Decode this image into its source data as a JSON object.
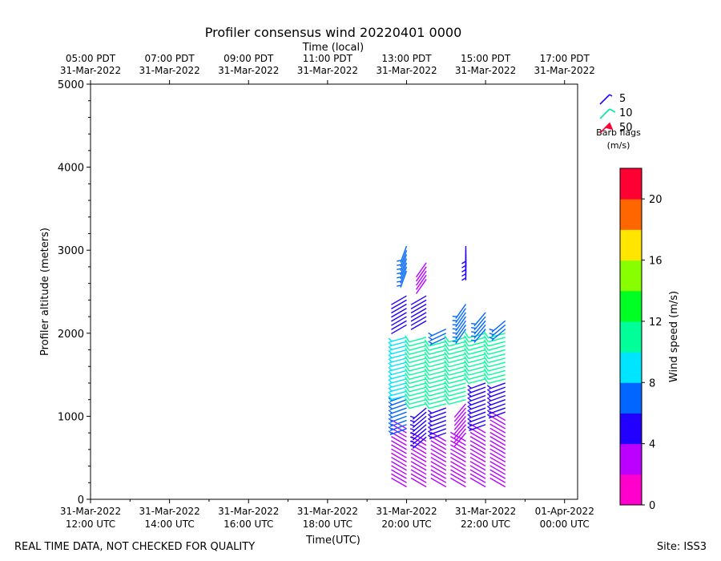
{
  "chart_data": {
    "type": "wind-barb",
    "title": "Profiler consensus wind 20220401 0000",
    "top_axis_label": "Time (local)",
    "xlabel": "Time(UTC)",
    "ylabel": "Profiler altitude (meters)",
    "xlim_hours_utc": [
      12.0,
      24.33
    ],
    "ylim": [
      0,
      5000
    ],
    "yticks": [
      "0",
      "1000",
      "2000",
      "3000",
      "4000",
      "5000"
    ],
    "bottom_ticks": [
      {
        "hour": 12,
        "date": "31-Mar-2022",
        "time": "12:00 UTC"
      },
      {
        "hour": 14,
        "date": "31-Mar-2022",
        "time": "14:00 UTC"
      },
      {
        "hour": 16,
        "date": "31-Mar-2022",
        "time": "16:00 UTC"
      },
      {
        "hour": 18,
        "date": "31-Mar-2022",
        "time": "18:00 UTC"
      },
      {
        "hour": 20,
        "date": "31-Mar-2022",
        "time": "20:00 UTC"
      },
      {
        "hour": 22,
        "date": "31-Mar-2022",
        "time": "22:00 UTC"
      },
      {
        "hour": 24,
        "date": "01-Apr-2022",
        "time": "00:00 UTC"
      }
    ],
    "top_ticks": [
      {
        "hour": 12,
        "time": "05:00 PDT",
        "date": "31-Mar-2022"
      },
      {
        "hour": 14,
        "time": "07:00 PDT",
        "date": "31-Mar-2022"
      },
      {
        "hour": 16,
        "time": "09:00 PDT",
        "date": "31-Mar-2022"
      },
      {
        "hour": 18,
        "time": "11:00 PDT",
        "date": "31-Mar-2022"
      },
      {
        "hour": 20,
        "time": "13:00 PDT",
        "date": "31-Mar-2022"
      },
      {
        "hour": 22,
        "time": "15:00 PDT",
        "date": "31-Mar-2022"
      },
      {
        "hour": 24,
        "time": "17:00 PDT",
        "date": "31-Mar-2022"
      }
    ],
    "barb_profiles": [
      {
        "hour": 20.0,
        "segments": [
          {
            "from": 150,
            "to": 850,
            "dir": 300,
            "speed": 3
          },
          {
            "from": 850,
            "to": 1250,
            "dir": 250,
            "speed": 6
          },
          {
            "from": 1250,
            "to": 1950,
            "dir": 255,
            "speed": 9
          },
          {
            "from": 2100,
            "to": 2450,
            "dir": 240,
            "speed": 4
          },
          {
            "from": 2750,
            "to": 3050,
            "dir": 200,
            "speed": 6
          }
        ]
      },
      {
        "hour": 20.5,
        "segments": [
          {
            "from": 150,
            "to": 700,
            "dir": 300,
            "speed": 2
          },
          {
            "from": 750,
            "to": 1100,
            "dir": 230,
            "speed": 5
          },
          {
            "from": 1150,
            "to": 1950,
            "dir": 255,
            "speed": 10
          },
          {
            "from": 2150,
            "to": 2450,
            "dir": 240,
            "speed": 4
          },
          {
            "from": 2650,
            "to": 2850,
            "dir": 215,
            "speed": 3
          }
        ]
      },
      {
        "hour": 21.0,
        "segments": [
          {
            "from": 150,
            "to": 700,
            "dir": 300,
            "speed": 2
          },
          {
            "from": 800,
            "to": 1100,
            "dir": 250,
            "speed": 5
          },
          {
            "from": 1150,
            "to": 1900,
            "dir": 255,
            "speed": 10
          },
          {
            "from": 1950,
            "to": 2050,
            "dir": 245,
            "speed": 7
          }
        ]
      },
      {
        "hour": 21.5,
        "segments": [
          {
            "from": 150,
            "to": 700,
            "dir": 300,
            "speed": 2
          },
          {
            "from": 800,
            "to": 1150,
            "dir": 220,
            "speed": 3
          },
          {
            "from": 1200,
            "to": 1950,
            "dir": 255,
            "speed": 11
          },
          {
            "from": 2050,
            "to": 2350,
            "dir": 215,
            "speed": 7
          },
          {
            "from": 2850,
            "to": 3050,
            "dir": 180,
            "speed": 5
          }
        ]
      },
      {
        "hour": 22.0,
        "segments": [
          {
            "from": 150,
            "to": 800,
            "dir": 300,
            "speed": 2
          },
          {
            "from": 900,
            "to": 1400,
            "dir": 250,
            "speed": 5
          },
          {
            "from": 1450,
            "to": 2000,
            "dir": 255,
            "speed": 11
          },
          {
            "from": 2050,
            "to": 2250,
            "dir": 220,
            "speed": 7
          }
        ]
      },
      {
        "hour": 22.5,
        "segments": [
          {
            "from": 150,
            "to": 950,
            "dir": 300,
            "speed": 2
          },
          {
            "from": 1050,
            "to": 1400,
            "dir": 250,
            "speed": 5
          },
          {
            "from": 1450,
            "to": 2000,
            "dir": 255,
            "speed": 10
          },
          {
            "from": 2050,
            "to": 2150,
            "dir": 230,
            "speed": 7
          }
        ]
      }
    ],
    "barb_legend": [
      {
        "speed": 5,
        "label": "5",
        "color": "#2200ff"
      },
      {
        "speed": 10,
        "label": "10",
        "color": "#00e8a0"
      },
      {
        "speed": 50,
        "label": "50",
        "color": "#ff0033"
      }
    ],
    "barb_legend_caption": [
      "Barb flags",
      "(m/s)"
    ],
    "colorbar": {
      "label": "Wind speed (m/s)",
      "range": [
        0,
        22
      ],
      "ticks": [
        0,
        4,
        8,
        12,
        16,
        20
      ],
      "colors": [
        "#ff00cc",
        "#bb00ff",
        "#2200ff",
        "#0066ff",
        "#00e5ff",
        "#00ff99",
        "#00ff22",
        "#88ff00",
        "#ffe500",
        "#ff6600",
        "#ff0033"
      ]
    },
    "footer_left": "REAL TIME DATA, NOT CHECKED FOR QUALITY",
    "footer_right": "Site: ISS3"
  }
}
